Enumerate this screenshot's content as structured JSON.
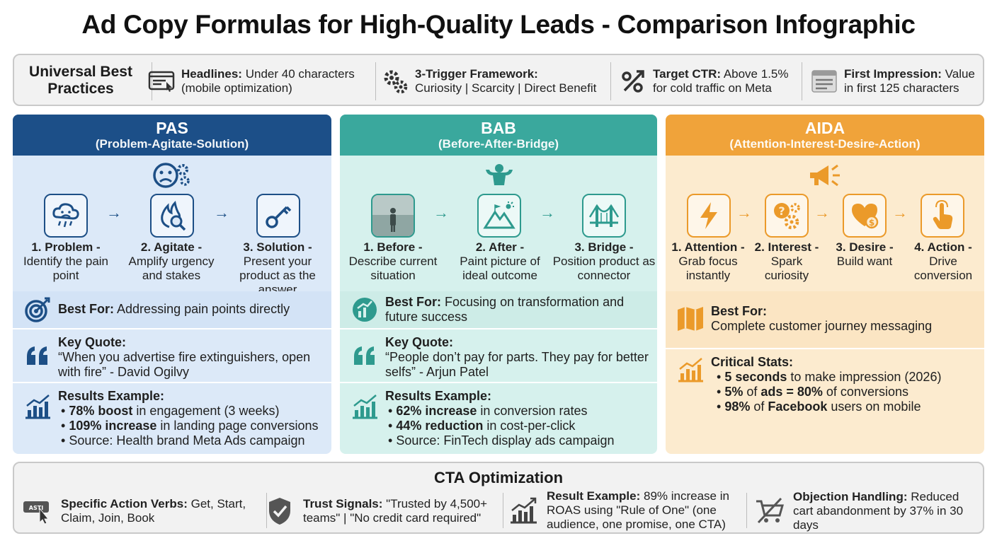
{
  "title": "Ad Copy Formulas for High-Quality Leads - Comparison Infographic",
  "universal": {
    "heading": "Universal Best Practices",
    "items": [
      {
        "icon": "headline-screen-icon",
        "label": "Headlines:",
        "text": "Under 40 characters (mobile optimization)"
      },
      {
        "icon": "gears-icon",
        "label": "3-Trigger Framework:",
        "text": "Curiosity | Scarcity | Direct Benefit"
      },
      {
        "icon": "percent-arrow-icon",
        "label": "Target CTR:",
        "text": "Above 1.5% for cold traffic on Meta"
      },
      {
        "icon": "document-lines-icon",
        "label": "First Impression:",
        "text": "Value in first 125 characters"
      }
    ]
  },
  "columns": [
    {
      "name": "PAS",
      "subtitle": "(Problem-Agitate-Solution)",
      "colors": {
        "header": "#1c4f88",
        "body": "#dce9f8",
        "row": "#d3e3f6",
        "accent": "#1d4f86"
      },
      "steps": [
        {
          "title": "1. Problem -",
          "desc": "Identify the pain point"
        },
        {
          "title": "2. Agitate -",
          "desc": "Amplify urgency and stakes"
        },
        {
          "title": "3. Solution -",
          "desc": "Present your product as the answer"
        }
      ],
      "best_for_label": "Best For:",
      "best_for": "Addressing pain points directly",
      "quote_label": "Key Quote:",
      "quote": "“When you advertise fire extinguishers, open with fire” - David Ogilvy",
      "results_label": "Results Example:",
      "results": [
        {
          "bold": "78% boost",
          "rest": " in engagement (3 weeks)"
        },
        {
          "bold": "109% increase",
          "rest": " in landing page conversions"
        },
        {
          "bold": "",
          "rest": "Source: Health brand Meta Ads campaign"
        }
      ]
    },
    {
      "name": "BAB",
      "subtitle": "(Before-After-Bridge)",
      "colors": {
        "header": "#3aa89d",
        "body": "#d6f1ed",
        "row": "#cdece7",
        "accent": "#2e9a8e"
      },
      "steps": [
        {
          "title": "1. Before -",
          "desc": "Describe current situation"
        },
        {
          "title": "2. After -",
          "desc": "Paint picture of ideal outcome"
        },
        {
          "title": "3. Bridge -",
          "desc": "Position product as connector"
        }
      ],
      "best_for_label": "Best For:",
      "best_for": "Focusing on transformation and future success",
      "quote_label": "Key Quote:",
      "quote": "“People don’t pay for parts. They pay for better selfs” - Arjun Patel",
      "results_label": "Results Example:",
      "results": [
        {
          "bold": "62% increase",
          "rest": " in conversion rates"
        },
        {
          "bold": "44% reduction",
          "rest": " in cost-per-click"
        },
        {
          "bold": "",
          "rest": "Source: FinTech display ads campaign"
        }
      ]
    },
    {
      "name": "AIDA",
      "subtitle": "(Attention-Interest-Desire-Action)",
      "colors": {
        "header": "#f0a33a",
        "body": "#fcebcf",
        "row": "#fbe5c3",
        "accent": "#eb9a2a"
      },
      "steps": [
        {
          "title": "1. Attention -",
          "desc": "Grab focus instantly"
        },
        {
          "title": "2. Interest -",
          "desc": "Spark curiosity"
        },
        {
          "title": "3. Desire -",
          "desc": "Build want"
        },
        {
          "title": "4. Action -",
          "desc": "Drive conversion"
        }
      ],
      "best_for_label": "Best For:",
      "best_for": "Complete customer journey messaging",
      "stats_label": "Critical Stats:",
      "stats": [
        {
          "bold": "5 seconds",
          "rest": " to make impression (2026)"
        },
        {
          "bold": "5%",
          "mid": " of ",
          "bold2": "ads = 80%",
          "rest": " of conversions"
        },
        {
          "bold": "98%",
          "mid": " of ",
          "bold2": "Facebook",
          "rest": " users on mobile"
        }
      ]
    }
  ],
  "cta": {
    "title": "CTA Optimization",
    "items": [
      {
        "icon": "click-button-icon",
        "label": "Specific Action Verbs:",
        "text": "Get, Start, Claim, Join, Book"
      },
      {
        "icon": "shield-check-icon",
        "label": "Trust Signals:",
        "text": "\"Trusted by 4,500+ teams\" | \"No credit card required\""
      },
      {
        "icon": "growth-chart-icon",
        "label": "Result Example:",
        "text": "89% increase in ROAS using \"Rule of One\" (one audience, one promise, one CTA)"
      },
      {
        "icon": "cart-off-icon",
        "label": "Objection Handling:",
        "text": "Reduced cart abandonment by 37% in 30 days"
      }
    ]
  }
}
